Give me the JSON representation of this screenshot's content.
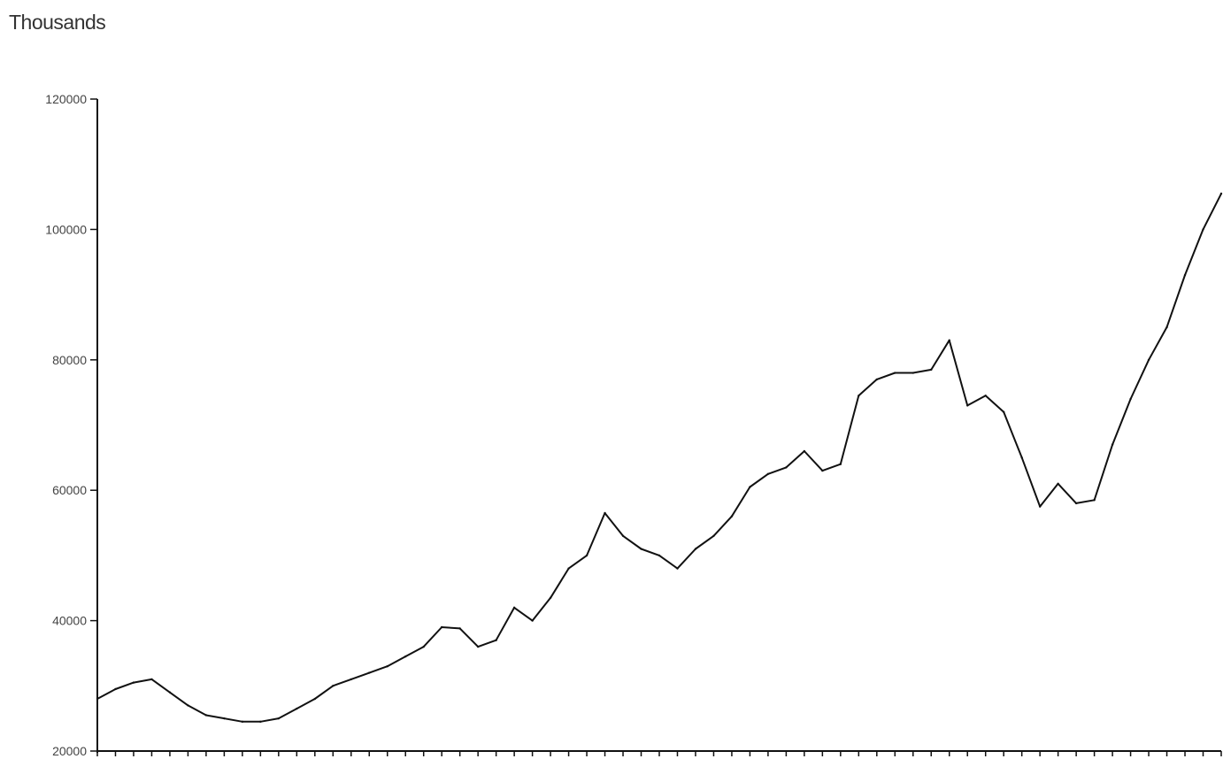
{
  "chart_data": {
    "type": "line",
    "ylabel": "Thousands",
    "ylim": [
      20000,
      120000
    ],
    "yticks": [
      120000,
      100000,
      80000,
      60000,
      40000,
      20000
    ],
    "grid": false,
    "series": [
      {
        "values": [
          28000,
          29500,
          30500,
          31000,
          29000,
          27000,
          25500,
          25000,
          24500,
          24500,
          25000,
          26500,
          28000,
          30000,
          31000,
          32000,
          33000,
          34500,
          36000,
          39000,
          38800,
          36000,
          37000,
          42000,
          40000,
          43500,
          48000,
          50000,
          56500,
          53000,
          51000,
          50000,
          48000,
          51000,
          53000,
          56000,
          60500,
          62500,
          63500,
          66000,
          63000,
          64000,
          74500,
          77000,
          78000,
          78000,
          78500,
          83000,
          73000,
          74500,
          72000,
          65000,
          57500,
          61000,
          58000,
          58500,
          67000,
          74000,
          80000,
          85000,
          93000,
          100000,
          105500
        ]
      }
    ]
  }
}
